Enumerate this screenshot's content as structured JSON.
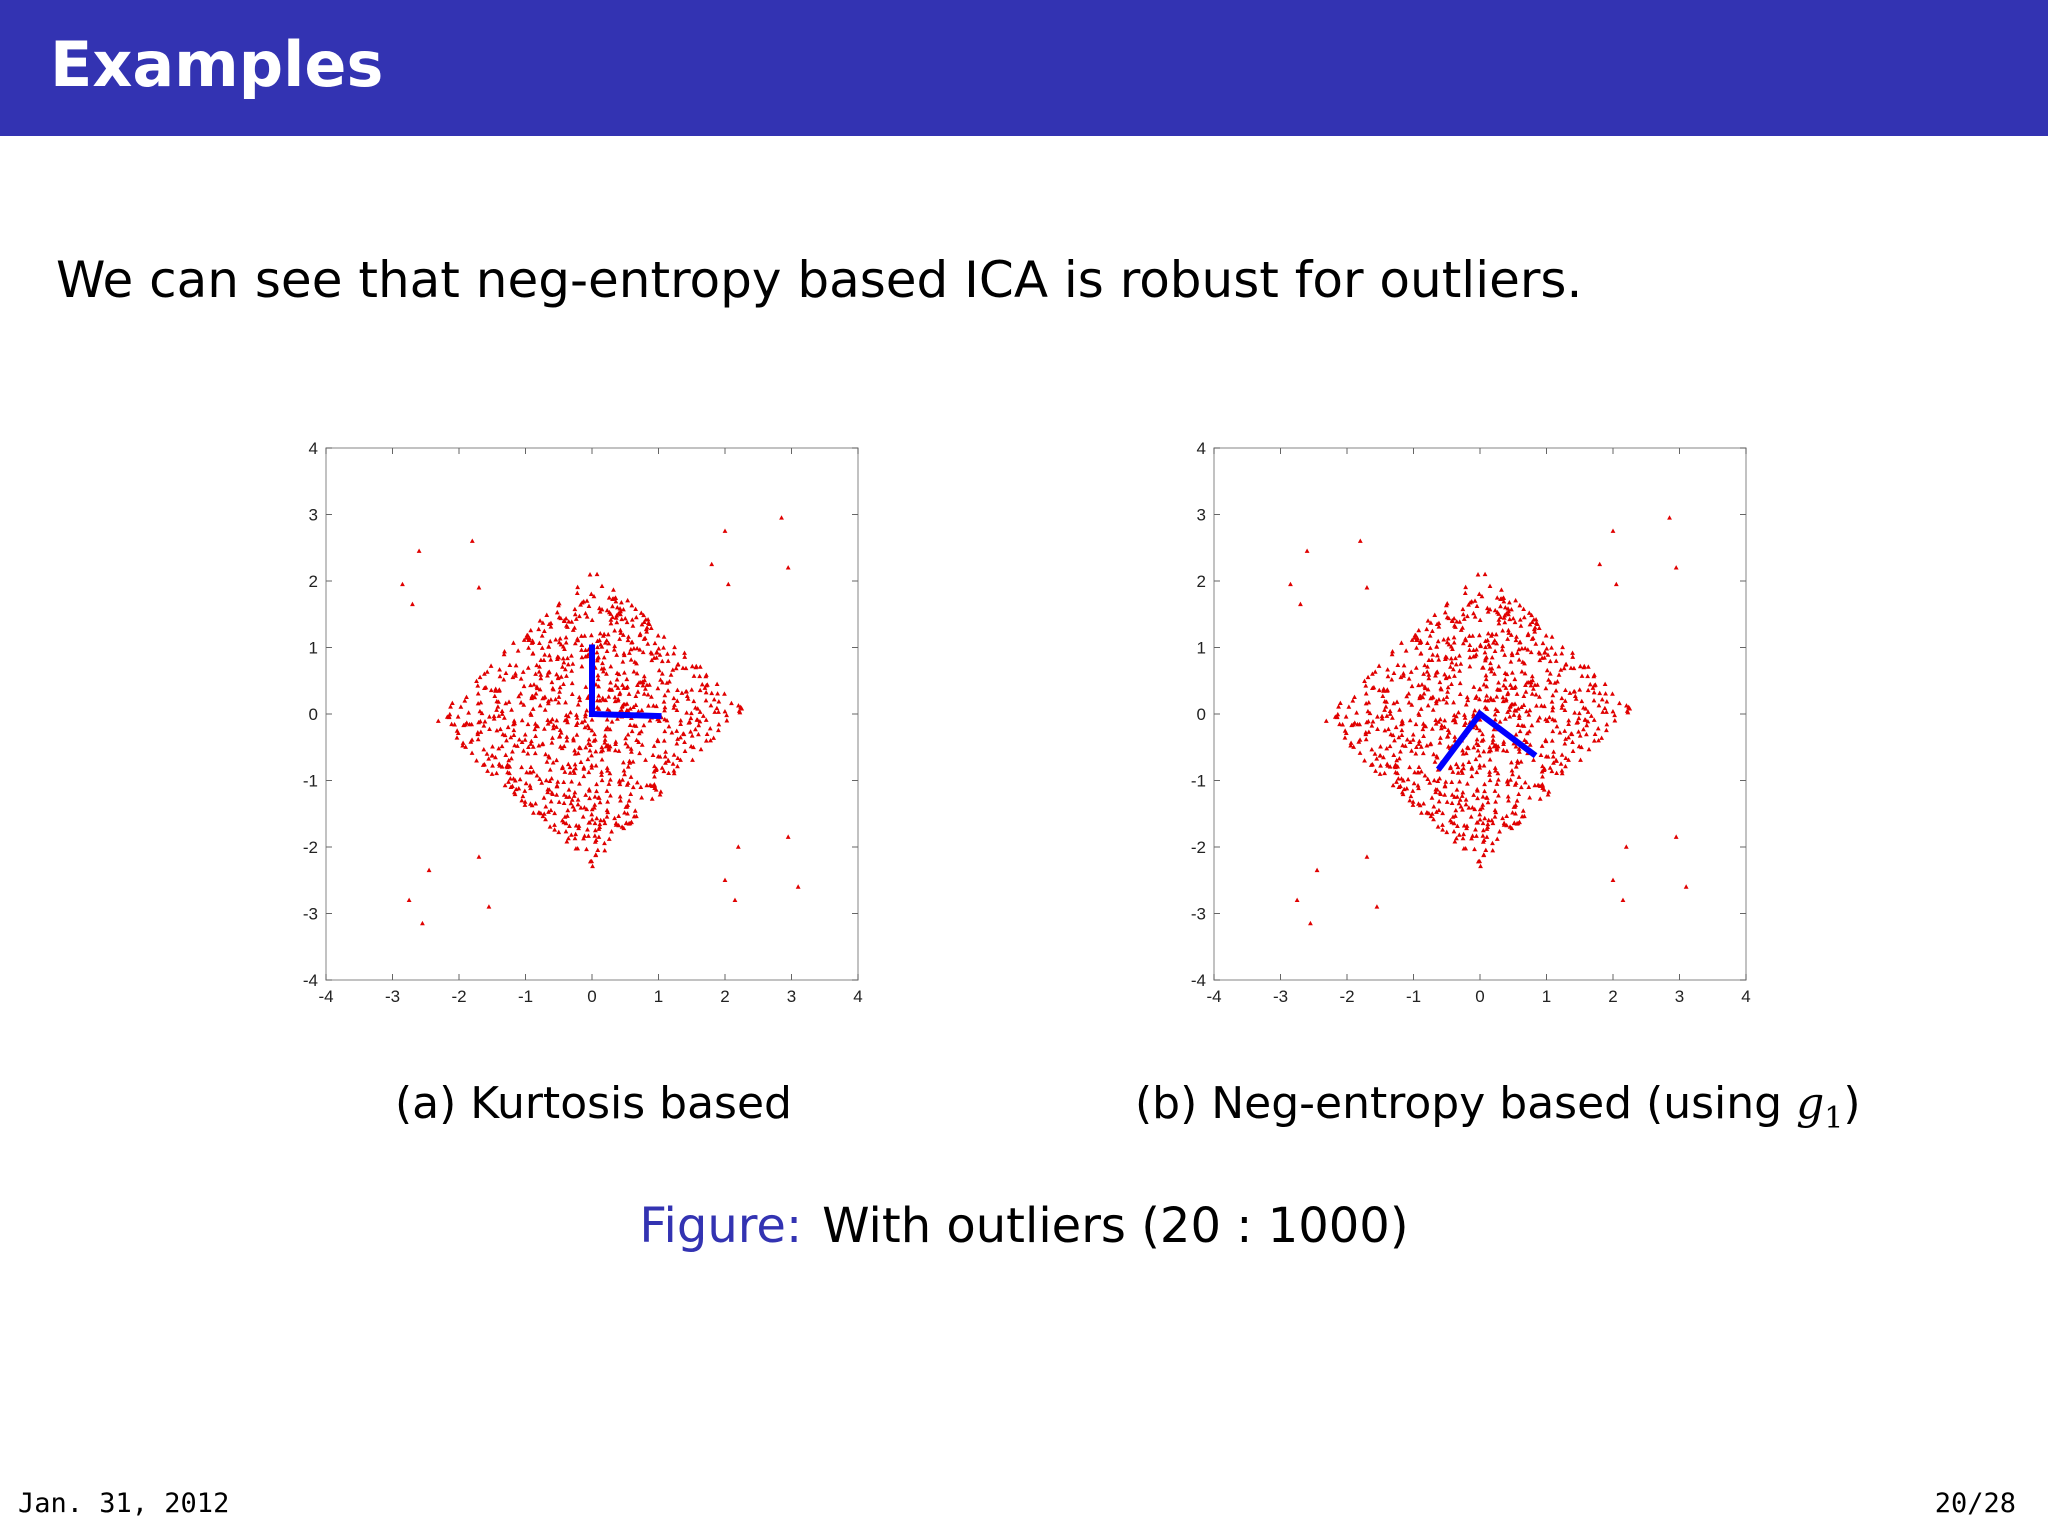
{
  "slide": {
    "title": "Examples",
    "intro": "We can see that neg-entropy based ICA is robust for outliers."
  },
  "captions": {
    "a_label": "(a)",
    "a_text": "Kurtosis based",
    "b_label": "(b)",
    "b_text": "Neg-entropy based (using",
    "b_math_base": "g",
    "b_math_sub": "1",
    "b_close": ")"
  },
  "figure": {
    "label": "Figure:",
    "text": "With outliers (20 : 1000)"
  },
  "footer": {
    "date": "Jan. 31, 2012",
    "page": "20/28"
  },
  "chart_data": [
    {
      "type": "scatter",
      "panel": "(a) Kurtosis based",
      "xlim": [
        -4,
        4
      ],
      "ylim": [
        -4,
        4
      ],
      "xticks": [
        -4,
        -3,
        -2,
        -1,
        0,
        1,
        2,
        3,
        4
      ],
      "yticks": [
        -4,
        -3,
        -2,
        -1,
        0,
        1,
        2,
        3,
        4
      ],
      "grid": false,
      "point_color": "#e00000",
      "line_color": "#0000ff",
      "cloud": {
        "shape": "diamond",
        "center": [
          0,
          0
        ],
        "vertices": [
          [
            0,
            2.2
          ],
          [
            2.3,
            0.1
          ],
          [
            0,
            -2.3
          ],
          [
            -2.4,
            -0.1
          ]
        ],
        "count": 1000
      },
      "outliers": [
        [
          -2.6,
          2.45
        ],
        [
          -1.8,
          2.6
        ],
        [
          -2.85,
          1.95
        ],
        [
          -2.7,
          1.65
        ],
        [
          -1.7,
          1.9
        ],
        [
          2.0,
          2.75
        ],
        [
          2.85,
          2.95
        ],
        [
          1.8,
          2.25
        ],
        [
          2.95,
          2.2
        ],
        [
          2.05,
          1.95
        ],
        [
          -2.45,
          -2.35
        ],
        [
          -1.7,
          -2.15
        ],
        [
          -2.75,
          -2.8
        ],
        [
          -2.55,
          -3.15
        ],
        [
          -1.55,
          -2.9
        ],
        [
          2.2,
          -2.0
        ],
        [
          2.95,
          -1.85
        ],
        [
          2.0,
          -2.5
        ],
        [
          3.1,
          -2.6
        ],
        [
          2.15,
          -2.8
        ]
      ],
      "directions": [
        {
          "from": [
            0,
            0
          ],
          "to": [
            0,
            1.0
          ]
        },
        {
          "from": [
            0,
            0
          ],
          "to": [
            1.0,
            -0.03
          ]
        }
      ]
    },
    {
      "type": "scatter",
      "panel": "(b) Neg-entropy based (using g1)",
      "xlim": [
        -4,
        4
      ],
      "ylim": [
        -4,
        4
      ],
      "xticks": [
        -4,
        -3,
        -2,
        -1,
        0,
        1,
        2,
        3,
        4
      ],
      "yticks": [
        -4,
        -3,
        -2,
        -1,
        0,
        1,
        2,
        3,
        4
      ],
      "grid": false,
      "point_color": "#e00000",
      "line_color": "#0000ff",
      "cloud": {
        "shape": "diamond",
        "center": [
          0,
          0
        ],
        "vertices": [
          [
            0,
            2.2
          ],
          [
            2.3,
            0.1
          ],
          [
            0,
            -2.3
          ],
          [
            -2.4,
            -0.1
          ]
        ],
        "count": 1000
      },
      "outliers": [
        [
          -2.6,
          2.45
        ],
        [
          -1.8,
          2.6
        ],
        [
          -2.85,
          1.95
        ],
        [
          -2.7,
          1.65
        ],
        [
          -1.7,
          1.9
        ],
        [
          2.0,
          2.75
        ],
        [
          2.85,
          2.95
        ],
        [
          1.8,
          2.25
        ],
        [
          2.95,
          2.2
        ],
        [
          2.05,
          1.95
        ],
        [
          -2.45,
          -2.35
        ],
        [
          -1.7,
          -2.15
        ],
        [
          -2.75,
          -2.8
        ],
        [
          -2.55,
          -3.15
        ],
        [
          -1.55,
          -2.9
        ],
        [
          2.2,
          -2.0
        ],
        [
          2.95,
          -1.85
        ],
        [
          2.0,
          -2.5
        ],
        [
          3.1,
          -2.6
        ],
        [
          2.15,
          -2.8
        ]
      ],
      "directions": [
        {
          "from": [
            0,
            0
          ],
          "to": [
            -0.6,
            -0.8
          ]
        },
        {
          "from": [
            0,
            0
          ],
          "to": [
            0.8,
            -0.6
          ]
        }
      ]
    }
  ]
}
